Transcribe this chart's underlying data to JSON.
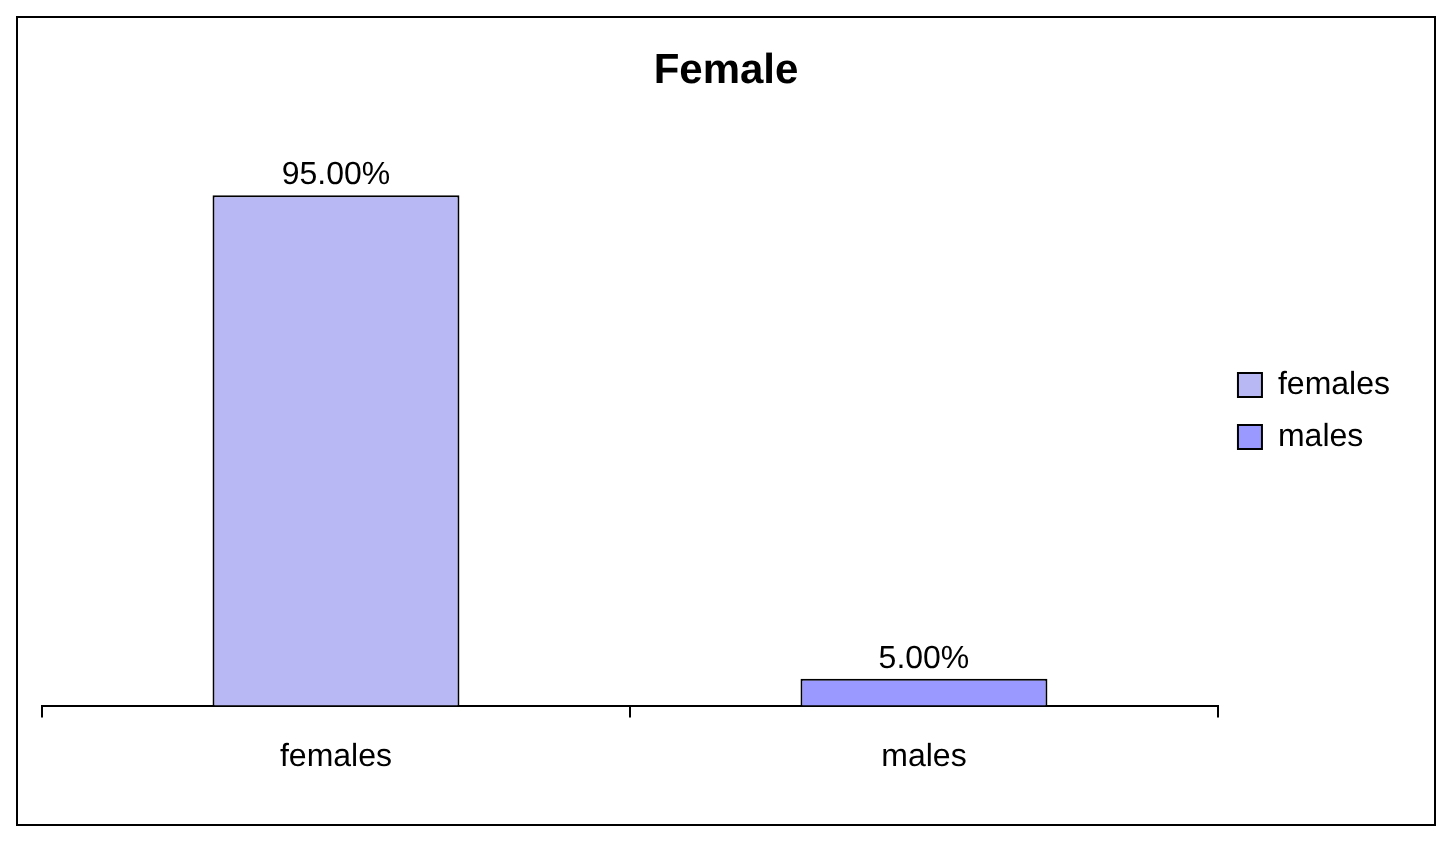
{
  "chart_data": {
    "type": "bar",
    "title": "Female",
    "categories": [
      "females",
      "males"
    ],
    "series": [
      {
        "name": "females",
        "color": "#b8b8f4",
        "values": [
          95,
          null
        ],
        "value_labels": [
          "95.00%",
          null
        ]
      },
      {
        "name": "males",
        "color": "#9999ff",
        "values": [
          null,
          5
        ],
        "value_labels": [
          null,
          "5.00%"
        ]
      }
    ],
    "tick_labels": "x",
    "legend": "right"
  }
}
